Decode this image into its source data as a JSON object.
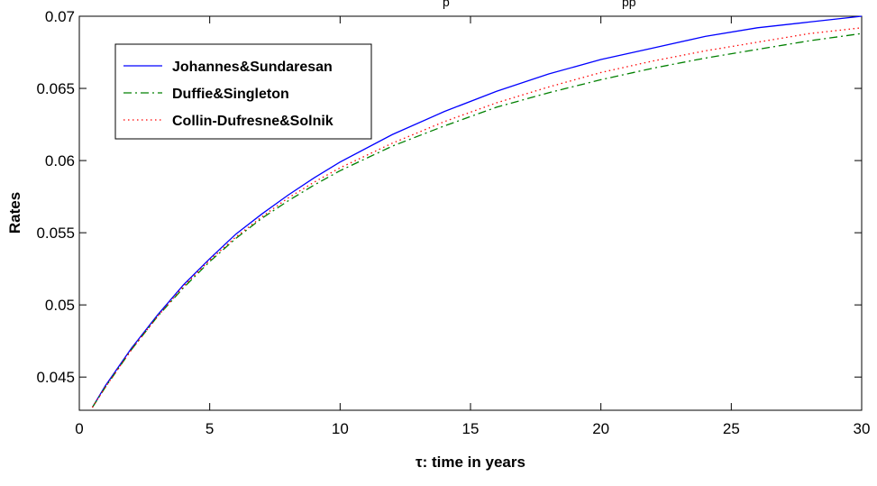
{
  "chart_data": {
    "type": "line",
    "top_text_fragment": "p",
    "top_text_fragment_right": "pp",
    "xlabel": "τ: time in years",
    "ylabel": "Rates",
    "xlim": [
      0,
      30
    ],
    "ylim": [
      0.0427,
      0.07
    ],
    "xticks": [
      0,
      5,
      10,
      15,
      20,
      25,
      30
    ],
    "yticks": [
      0.045,
      0.05,
      0.055,
      0.06,
      0.065,
      0.07
    ],
    "grid": false,
    "legend_position": "top-left",
    "series": [
      {
        "name": "Johannes&Sundaresan",
        "color": "#0000ff",
        "style": "solid",
        "x": [
          0.5,
          1,
          2,
          3,
          4,
          5,
          6,
          7,
          8,
          9,
          10,
          12,
          14,
          16,
          18,
          20,
          22,
          24,
          26,
          28,
          30
        ],
        "y": [
          0.0429,
          0.0444,
          0.047,
          0.0493,
          0.0514,
          0.0532,
          0.0549,
          0.0563,
          0.0576,
          0.0588,
          0.0599,
          0.0618,
          0.0634,
          0.0648,
          0.066,
          0.067,
          0.0678,
          0.0686,
          0.0692,
          0.0696,
          0.07
        ]
      },
      {
        "name": "Duffie&Singleton",
        "color": "#008000",
        "style": "dashdot",
        "x": [
          0.5,
          1,
          2,
          3,
          4,
          5,
          6,
          7,
          8,
          9,
          10,
          12,
          14,
          16,
          18,
          20,
          22,
          24,
          26,
          28,
          30
        ],
        "y": [
          0.0429,
          0.0443,
          0.0469,
          0.0492,
          0.0512,
          0.053,
          0.0546,
          0.056,
          0.0572,
          0.0583,
          0.0593,
          0.061,
          0.0624,
          0.0637,
          0.0647,
          0.0656,
          0.0664,
          0.0671,
          0.0677,
          0.0683,
          0.0688
        ]
      },
      {
        "name": "Collin-Dufresne&Solnik",
        "color": "#ff0000",
        "style": "dotted",
        "x": [
          0.5,
          1,
          2,
          3,
          4,
          5,
          6,
          7,
          8,
          9,
          10,
          12,
          14,
          16,
          18,
          20,
          22,
          24,
          26,
          28,
          30
        ],
        "y": [
          0.0429,
          0.0443,
          0.0469,
          0.0492,
          0.0513,
          0.0531,
          0.0547,
          0.0561,
          0.0574,
          0.0585,
          0.0595,
          0.0612,
          0.0627,
          0.064,
          0.0651,
          0.0661,
          0.0669,
          0.0676,
          0.0682,
          0.0688,
          0.0692
        ]
      }
    ]
  }
}
